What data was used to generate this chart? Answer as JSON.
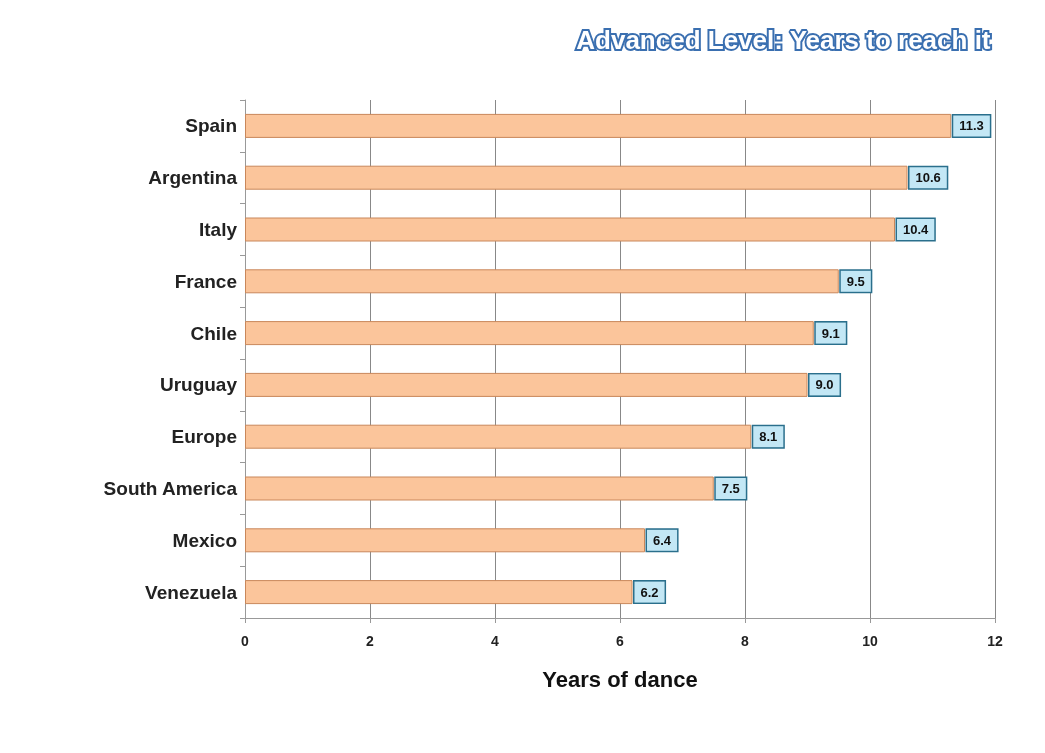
{
  "chart_data": {
    "type": "bar",
    "orientation": "horizontal",
    "title": "Advanced Level: Years to reach it",
    "xlabel": "Years of dance",
    "categories": [
      "Spain",
      "Argentina",
      "Italy",
      "France",
      "Chile",
      "Uruguay",
      "Europe",
      "South America",
      "Mexico",
      "Venezuela"
    ],
    "values": [
      11.3,
      10.6,
      10.4,
      9.5,
      9.1,
      9.0,
      8.1,
      7.5,
      6.4,
      6.2
    ],
    "value_labels": [
      "11.3",
      "10.6",
      "10.4",
      "9.5",
      "9.1",
      "9.0",
      "8.1",
      "7.5",
      "6.4",
      "6.2"
    ],
    "color": "#fbc59b",
    "xlim": [
      0,
      12
    ],
    "xticks": [
      0,
      2,
      4,
      6,
      8,
      10,
      12
    ],
    "grid": "x"
  }
}
